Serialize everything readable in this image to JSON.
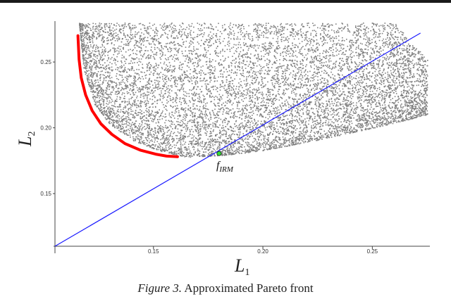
{
  "chart_data": {
    "type": "scatter",
    "title": "",
    "xlabel": "L",
    "xlabel_sub": "1",
    "ylabel": "L",
    "ylabel_sub": "2",
    "xlim": [
      0.105,
      0.275
    ],
    "ylim": [
      0.11,
      0.28
    ],
    "x_ticks": [
      {
        "value": 0.15,
        "label": "0.15"
      },
      {
        "value": 0.2,
        "label": "0.20"
      },
      {
        "value": 0.25,
        "label": "0.25"
      }
    ],
    "y_ticks": [
      {
        "value": 0.15,
        "label": "0.15"
      },
      {
        "value": 0.2,
        "label": "0.20"
      },
      {
        "value": 0.25,
        "label": "0.25"
      }
    ],
    "grid": false,
    "series": [
      {
        "role": "sampled points",
        "color": "#808080",
        "lower_boundary": [
          [
            0.116,
            0.278
          ],
          [
            0.118,
            0.245
          ],
          [
            0.123,
            0.218
          ],
          [
            0.13,
            0.203
          ],
          [
            0.14,
            0.191
          ],
          [
            0.152,
            0.183
          ],
          [
            0.165,
            0.178
          ],
          [
            0.18,
            0.179
          ],
          [
            0.2,
            0.183
          ],
          [
            0.225,
            0.191
          ],
          [
            0.25,
            0.2
          ],
          [
            0.275,
            0.21
          ]
        ],
        "upper_right_edge": [
          [
            0.26,
            0.28
          ],
          [
            0.275,
            0.252
          ]
        ]
      },
      {
        "role": "approximated Pareto front",
        "color": "#ff0000",
        "x": [
          0.1155,
          0.116,
          0.117,
          0.119,
          0.122,
          0.126,
          0.131,
          0.137,
          0.144,
          0.151,
          0.156,
          0.161
        ],
        "y": [
          0.27,
          0.252,
          0.238,
          0.225,
          0.213,
          0.203,
          0.195,
          0.188,
          0.183,
          0.18,
          0.1785,
          0.178
        ]
      },
      {
        "role": "line",
        "color": "#1a1aff",
        "x": [
          0.105,
          0.272
        ],
        "y": [
          0.11,
          0.272
        ]
      }
    ],
    "point": {
      "x": 0.18,
      "y": 0.1805,
      "color": "#33dd33",
      "label": "f",
      "label_sub": "IRM"
    }
  },
  "caption": {
    "prefix": "Figure 3.",
    "text": "Approximated Pareto front"
  }
}
